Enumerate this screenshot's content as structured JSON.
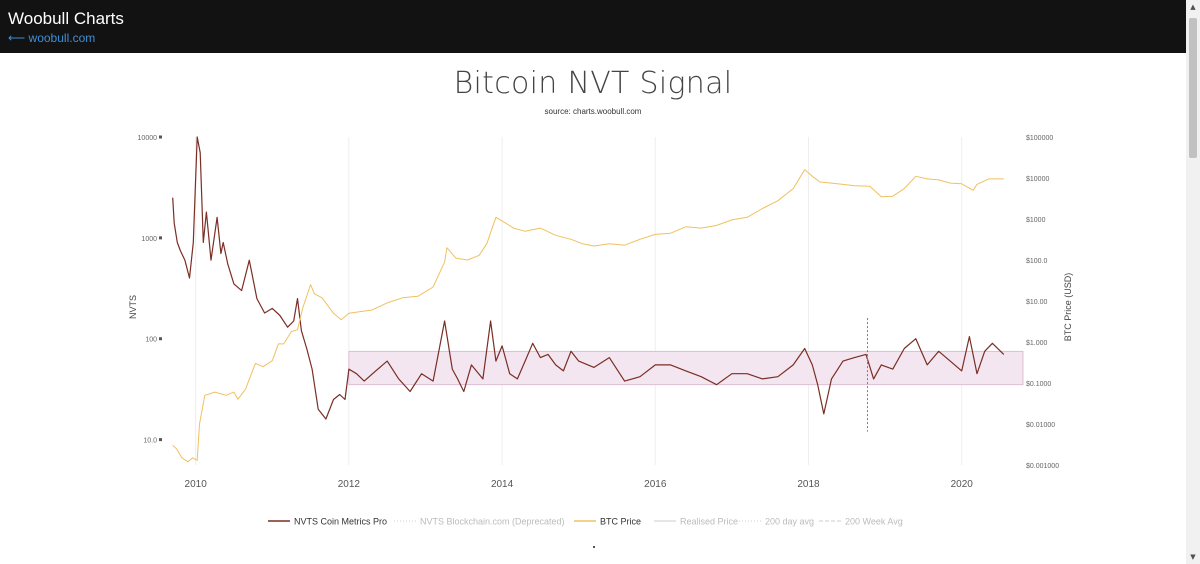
{
  "header": {
    "site_title": "Woobull Charts",
    "back_link": "⟵ woobull.com"
  },
  "chart_data": {
    "type": "line",
    "title": "Bitcoin NVT Signal",
    "subtitle": "source: charts.woobull.com",
    "xlabel": "",
    "y_left_label": "NVTS",
    "y_right_label": "BTC Price (USD)",
    "x_range": [
      2009.6,
      2020.8
    ],
    "x_ticks": [
      {
        "value": 2010,
        "label": "2010"
      },
      {
        "value": 2012,
        "label": "2012"
      },
      {
        "value": 2014,
        "label": "2014"
      },
      {
        "value": 2016,
        "label": "2016"
      },
      {
        "value": 2018,
        "label": "2018"
      },
      {
        "value": 2020,
        "label": "2020"
      }
    ],
    "y_left_scale": "log",
    "y_left_range": [
      5.6,
      10000
    ],
    "y_left_ticks": [
      {
        "value": 10000,
        "label": "10000"
      },
      {
        "value": 1000,
        "label": "1000"
      },
      {
        "value": 100,
        "label": "100"
      },
      {
        "value": 10,
        "label": "10.0"
      }
    ],
    "y_right_scale": "log",
    "y_right_range": [
      0.001,
      100000
    ],
    "y_right_ticks": [
      {
        "value": 100000,
        "label": "$100000"
      },
      {
        "value": 10000,
        "label": "$10000"
      },
      {
        "value": 1000,
        "label": "$1000"
      },
      {
        "value": 100,
        "label": "$100.0"
      },
      {
        "value": 10,
        "label": "$10.00"
      },
      {
        "value": 1,
        "label": "$1.000"
      },
      {
        "value": 0.1,
        "label": "$0.1000"
      },
      {
        "value": 0.01,
        "label": "$0.01000"
      },
      {
        "value": 0.001,
        "label": "$0.001000"
      }
    ],
    "grid": {
      "vertical": true,
      "horizontal": false
    },
    "band": {
      "y_low": 35,
      "y_high": 75,
      "x_start": 2012.0,
      "x_end": 2020.8,
      "color": "#f3e6f0",
      "border_color": "#d9b3cc"
    },
    "marker_line": {
      "x": 2018.77,
      "y_low": 12,
      "y_high": 160,
      "color": "#d9534f"
    },
    "legend_position": "bottom",
    "legend": [
      {
        "name": "NVTS Coin Metrics Pro",
        "color": "#7a2e24",
        "style": "solid",
        "active": true
      },
      {
        "name": "NVTS Blockchain.com (Deprecated)",
        "color": "#aaaaaa",
        "style": "dotted",
        "active": false
      },
      {
        "name": "BTC Price",
        "color": "#f0c060",
        "style": "solid",
        "active": true
      },
      {
        "name": "Realised Price",
        "color": "#aaaaaa",
        "style": "solid",
        "active": false
      },
      {
        "name": "200 day avg",
        "color": "#aaaaaa",
        "style": "dotted",
        "active": false
      },
      {
        "name": "200 Week Avg",
        "color": "#888888",
        "style": "dashed",
        "active": false
      }
    ],
    "series": [
      {
        "name": "NVTS Coin Metrics Pro",
        "axis": "left",
        "color": "#7a2e24",
        "x": [
          2009.7,
          2009.72,
          2009.76,
          2009.8,
          2009.86,
          2009.92,
          2009.97,
          2010.02,
          2010.06,
          2010.1,
          2010.14,
          2010.2,
          2010.28,
          2010.33,
          2010.36,
          2010.42,
          2010.5,
          2010.6,
          2010.7,
          2010.8,
          2010.9,
          2011.0,
          2011.1,
          2011.2,
          2011.28,
          2011.33,
          2011.38,
          2011.45,
          2011.52,
          2011.6,
          2011.7,
          2011.8,
          2011.88,
          2011.95,
          2012.0,
          2012.1,
          2012.2,
          2012.35,
          2012.5,
          2012.65,
          2012.8,
          2012.95,
          2013.1,
          2013.25,
          2013.35,
          2013.42,
          2013.5,
          2013.6,
          2013.75,
          2013.85,
          2013.92,
          2014.0,
          2014.1,
          2014.2,
          2014.3,
          2014.4,
          2014.5,
          2014.6,
          2014.7,
          2014.8,
          2014.9,
          2015.0,
          2015.2,
          2015.4,
          2015.6,
          2015.8,
          2016.0,
          2016.2,
          2016.4,
          2016.6,
          2016.8,
          2017.0,
          2017.2,
          2017.4,
          2017.6,
          2017.8,
          2017.95,
          2018.05,
          2018.12,
          2018.2,
          2018.3,
          2018.45,
          2018.6,
          2018.75,
          2018.85,
          2018.95,
          2019.1,
          2019.25,
          2019.4,
          2019.55,
          2019.7,
          2019.85,
          2020.0,
          2020.1,
          2020.2,
          2020.3,
          2020.4,
          2020.55
        ],
        "values": [
          2500,
          1400,
          900,
          750,
          600,
          400,
          900,
          10000,
          7000,
          900,
          1800,
          600,
          1600,
          700,
          900,
          550,
          350,
          300,
          600,
          250,
          180,
          200,
          170,
          130,
          150,
          250,
          120,
          80,
          50,
          20,
          16,
          25,
          28,
          25,
          50,
          45,
          38,
          48,
          60,
          40,
          30,
          45,
          38,
          150,
          50,
          40,
          30,
          55,
          40,
          150,
          60,
          85,
          45,
          40,
          60,
          90,
          65,
          70,
          55,
          48,
          75,
          60,
          52,
          65,
          38,
          42,
          55,
          55,
          48,
          42,
          35,
          45,
          45,
          40,
          42,
          55,
          80,
          55,
          35,
          18,
          40,
          60,
          65,
          70,
          40,
          55,
          50,
          80,
          100,
          55,
          75,
          60,
          48,
          105,
          45,
          75,
          90,
          70
        ]
      },
      {
        "name": "BTC Price",
        "axis": "right",
        "color": "#f0c060",
        "x": [
          2009.7,
          2009.75,
          2009.82,
          2009.9,
          2009.96,
          2010.02,
          2010.05,
          2010.12,
          2010.25,
          2010.4,
          2010.5,
          2010.55,
          2010.65,
          2010.78,
          2010.88,
          2011.0,
          2011.08,
          2011.15,
          2011.25,
          2011.33,
          2011.4,
          2011.45,
          2011.5,
          2011.55,
          2011.65,
          2011.8,
          2011.9,
          2012.0,
          2012.15,
          2012.3,
          2012.5,
          2012.7,
          2012.9,
          2013.1,
          2013.25,
          2013.28,
          2013.4,
          2013.55,
          2013.7,
          2013.8,
          2013.92,
          2014.0,
          2014.15,
          2014.3,
          2014.5,
          2014.7,
          2014.9,
          2015.05,
          2015.2,
          2015.4,
          2015.6,
          2015.8,
          2016.0,
          2016.2,
          2016.4,
          2016.6,
          2016.8,
          2017.0,
          2017.2,
          2017.4,
          2017.6,
          2017.8,
          2017.95,
          2018.05,
          2018.15,
          2018.3,
          2018.45,
          2018.6,
          2018.8,
          2018.95,
          2019.1,
          2019.25,
          2019.4,
          2019.55,
          2019.7,
          2019.85,
          2020.0,
          2020.15,
          2020.2,
          2020.35,
          2020.55
        ],
        "values": [
          0.003,
          0.0025,
          0.0015,
          0.0012,
          0.0015,
          0.0013,
          0.01,
          0.05,
          0.06,
          0.05,
          0.06,
          0.04,
          0.07,
          0.3,
          0.25,
          0.35,
          0.9,
          0.9,
          1.8,
          2.0,
          7,
          13,
          25,
          15,
          12,
          5,
          3.5,
          5,
          5.5,
          6,
          9,
          12,
          13,
          22,
          90,
          200,
          110,
          100,
          130,
          250,
          1100,
          900,
          600,
          500,
          600,
          400,
          320,
          250,
          220,
          250,
          230,
          320,
          420,
          450,
          650,
          600,
          700,
          950,
          1100,
          1800,
          2800,
          5500,
          16000,
          11000,
          8000,
          7500,
          7000,
          6500,
          6300,
          3500,
          3600,
          5500,
          11000,
          9500,
          9000,
          7500,
          7200,
          5000,
          7000,
          9500,
          9500
        ]
      }
    ]
  }
}
